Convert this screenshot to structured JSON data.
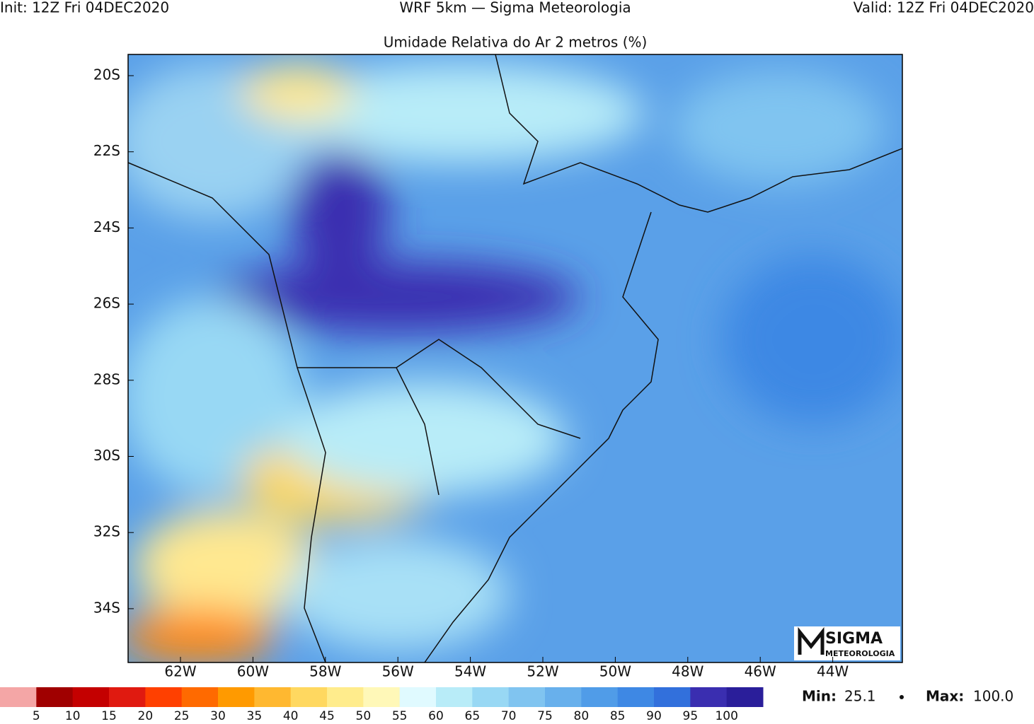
{
  "header": {
    "left": "Init: 12Z Fri 04DEC2020",
    "center": "WRF 5km — Sigma Meteorologia",
    "right": "Valid: 12Z Fri 04DEC2020"
  },
  "title": "Umidade Relativa do Ar 2 metros (%)",
  "lat_labels": [
    "20S",
    "22S",
    "24S",
    "26S",
    "28S",
    "30S",
    "32S",
    "34S"
  ],
  "lon_labels": [
    "62W",
    "60W",
    "58W",
    "56W",
    "54W",
    "52W",
    "50W",
    "48W",
    "46W",
    "44W"
  ],
  "logo": {
    "name": "SIGMA",
    "sub": "METEOROLOGIA"
  },
  "colorbar": {
    "colors": [
      "#f4a6a6",
      "#a00000",
      "#c40000",
      "#e01a10",
      "#ff4000",
      "#ff6a00",
      "#ff9a00",
      "#ffb830",
      "#ffd860",
      "#ffec8c",
      "#fff8b8",
      "#e0faff",
      "#b8ecf8",
      "#98d8f4",
      "#80c4f0",
      "#68b0ec",
      "#509ce8",
      "#3e88e4",
      "#3270dc",
      "#3a2eb0",
      "#2a1e9a"
    ],
    "labels": [
      5,
      10,
      15,
      20,
      25,
      30,
      35,
      40,
      45,
      50,
      55,
      60,
      65,
      70,
      75,
      80,
      85,
      90,
      95,
      100
    ]
  },
  "stats": {
    "min_label": "Min:",
    "min": 25.1,
    "max_label": "Max:",
    "max": "100.0"
  }
}
